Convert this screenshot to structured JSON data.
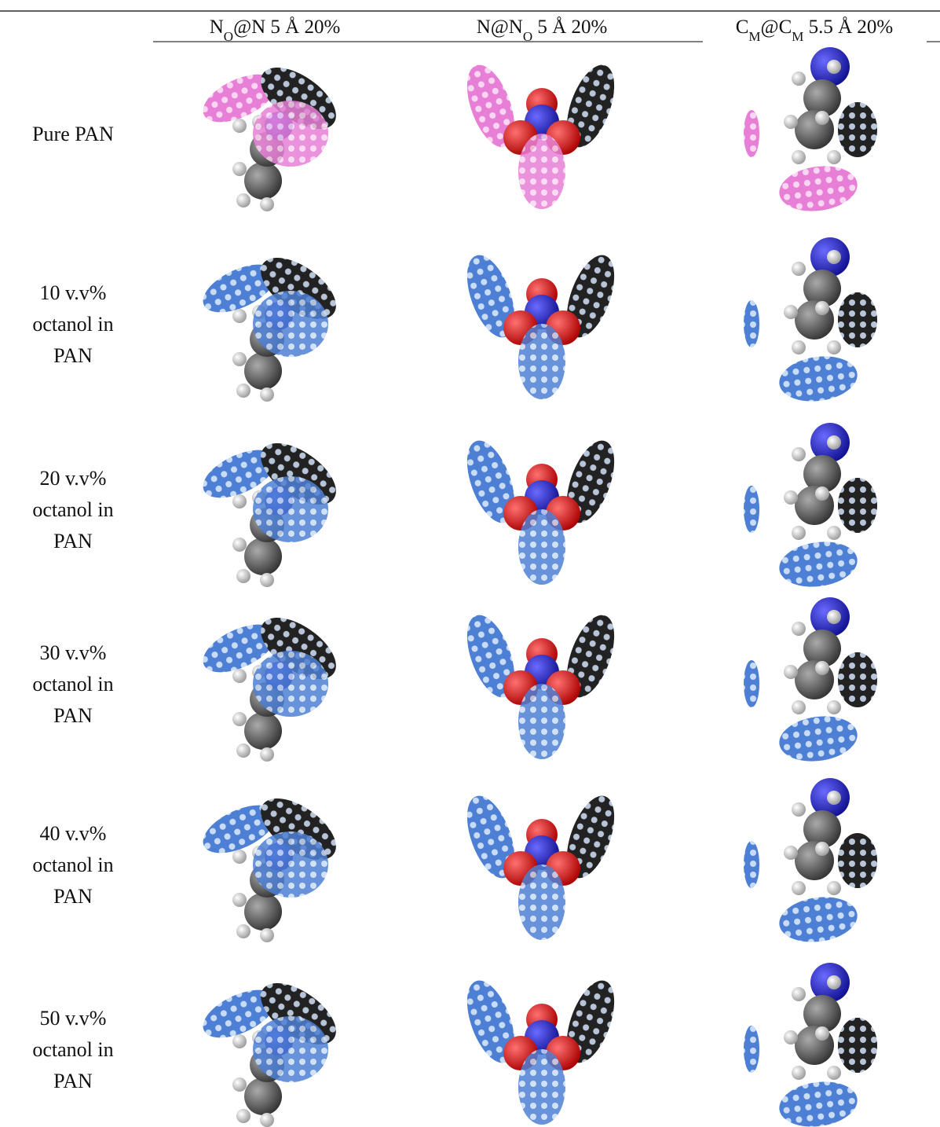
{
  "header": {
    "columns": [
      [
        "N",
        "O",
        "@N 5 Å 20%"
      ],
      [
        "N@N",
        "O",
        " 5 Å 20%"
      ],
      [
        "C",
        "M",
        "@C",
        "M",
        " 5.5 Å 20%"
      ]
    ]
  },
  "rows": [
    {
      "label": [
        "Pure PAN"
      ]
    },
    {
      "label": [
        "10 v.v%",
        "octanol in",
        "PAN"
      ]
    },
    {
      "label": [
        "20 v.v%",
        "octanol in",
        "PAN"
      ]
    },
    {
      "label": [
        "30 v.v%",
        "octanol in",
        "PAN"
      ]
    },
    {
      "label": [
        "40 v.v%",
        "octanol in",
        "PAN"
      ]
    },
    {
      "label": [
        "50 v.v%",
        "octanol in",
        "PAN"
      ]
    }
  ]
}
